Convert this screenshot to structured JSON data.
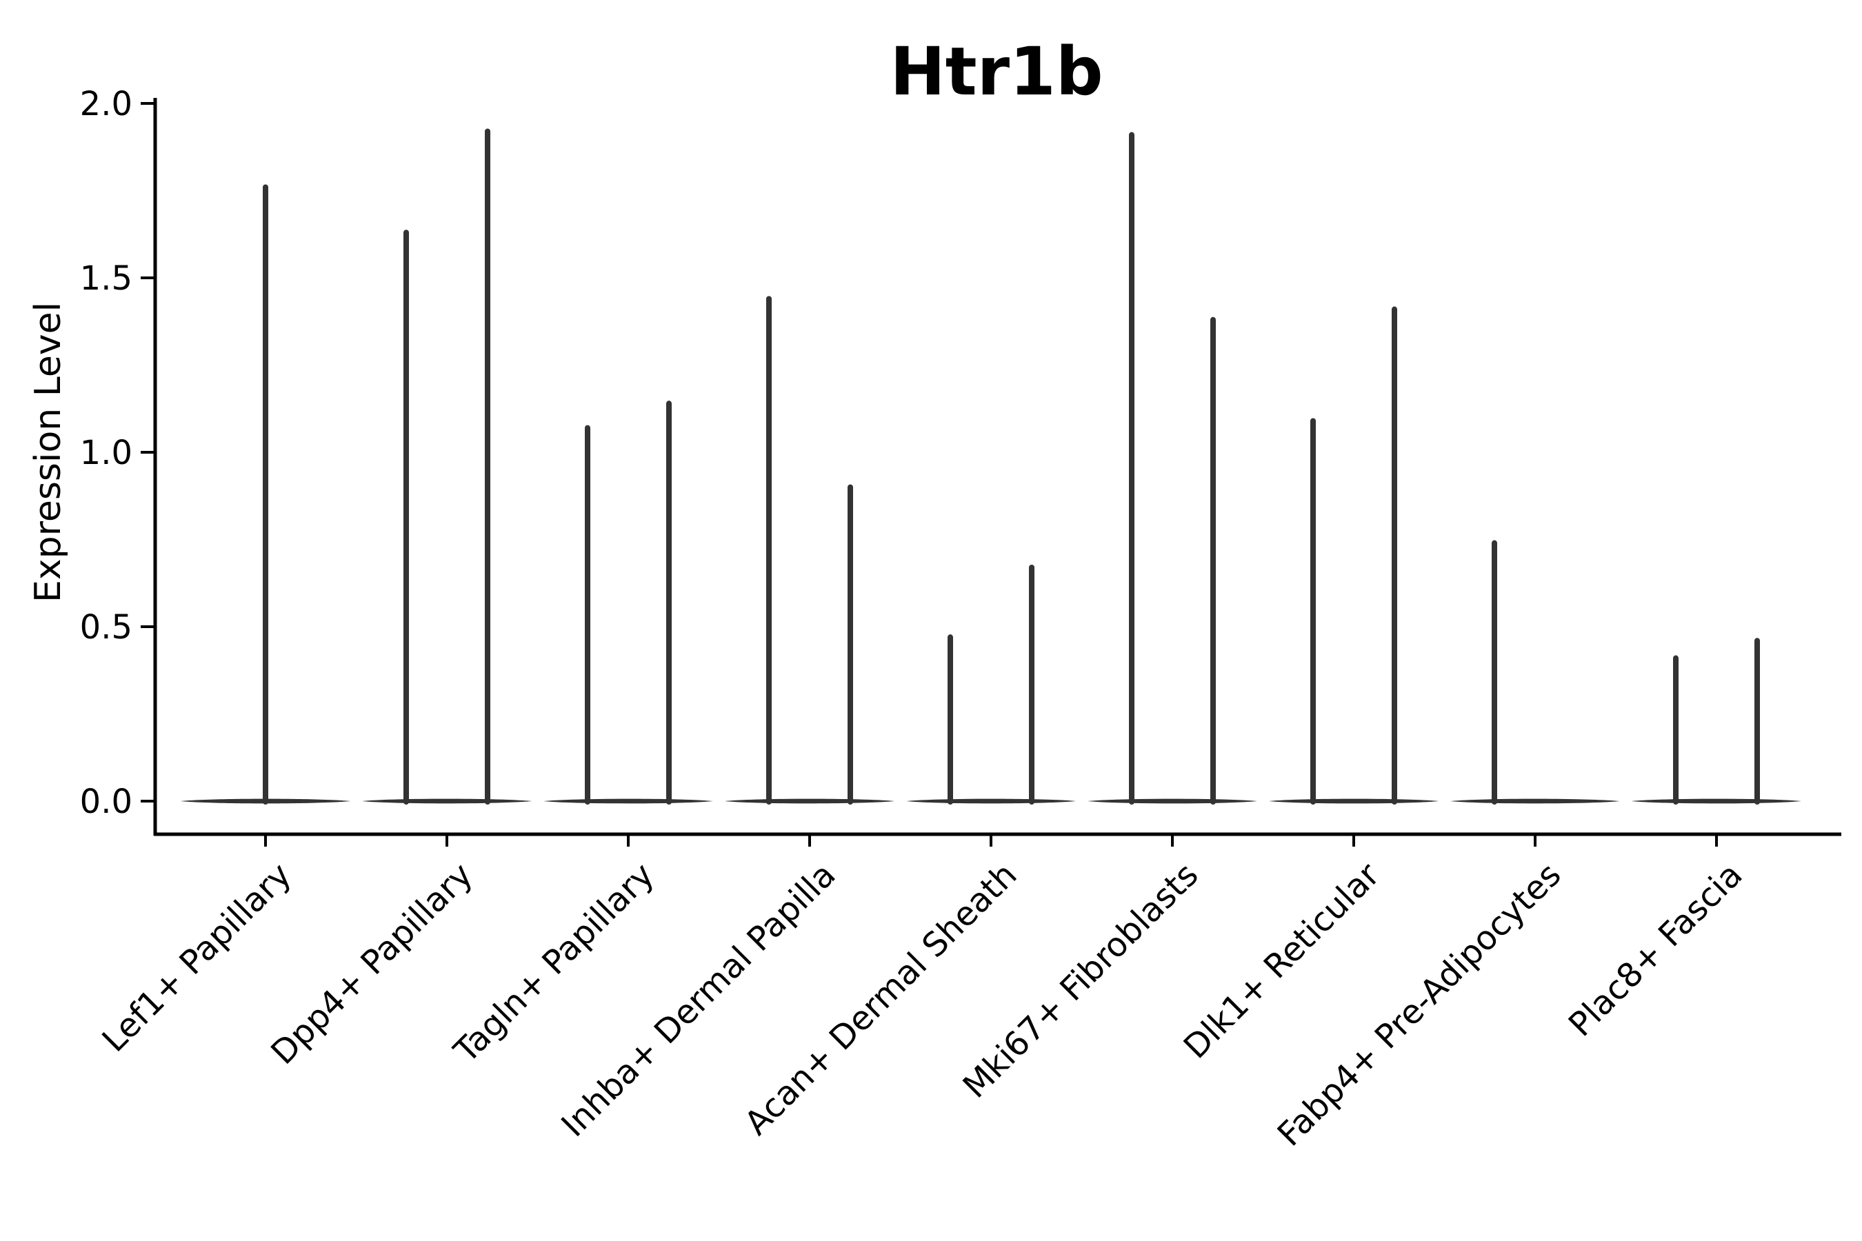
{
  "title": "Htr1b",
  "axes": {
    "y": {
      "label": "Expression Level",
      "tick_labels": [
        "0.0",
        "0.5",
        "1.0",
        "1.5",
        "2.0"
      ]
    },
    "x": {
      "categories": [
        "Lef1+ Papillary",
        "Dpp4+ Papillary",
        "Tagln+ Papillary",
        "Inhba+ Dermal Papilla",
        "Acan+ Dermal Sheath",
        "Mki67+ Fibroblasts",
        "Dlk1+ Reticular",
        "Fabp4+ Pre-Adipocytes",
        "Plac8+ Fascia"
      ]
    }
  },
  "style": {
    "violin_color": "#333333",
    "axis_color": "#000000",
    "text_color": "#000000",
    "background": "#ffffff"
  },
  "chart_data": {
    "type": "violin",
    "title": "Htr1b",
    "xlabel": "",
    "ylabel": "Expression Level",
    "ylim": [
      0,
      2.05
    ],
    "yticks": [
      0.0,
      0.5,
      1.0,
      1.5,
      2.0
    ],
    "grid": false,
    "legend": "none",
    "categories": [
      "Lef1+ Papillary",
      "Dpp4+ Papillary",
      "Tagln+ Papillary",
      "Inhba+ Dermal Papilla",
      "Acan+ Dermal Sheath",
      "Mki67+ Fibroblasts",
      "Dlk1+ Reticular",
      "Fabp4+ Pre-Adipocytes",
      "Plac8+ Fascia"
    ],
    "series": [
      {
        "category": "Lef1+ Papillary",
        "violins": [
          {
            "position": "center",
            "max_expression": 1.76
          }
        ]
      },
      {
        "category": "Dpp4+ Papillary",
        "violins": [
          {
            "position": "left",
            "max_expression": 1.63
          },
          {
            "position": "right",
            "max_expression": 1.92
          }
        ]
      },
      {
        "category": "Tagln+ Papillary",
        "violins": [
          {
            "position": "left",
            "max_expression": 1.07
          },
          {
            "position": "right",
            "max_expression": 1.14
          }
        ]
      },
      {
        "category": "Inhba+ Dermal Papilla",
        "violins": [
          {
            "position": "left",
            "max_expression": 1.44
          },
          {
            "position": "right",
            "max_expression": 0.9
          }
        ]
      },
      {
        "category": "Acan+ Dermal Sheath",
        "violins": [
          {
            "position": "left",
            "max_expression": 0.47
          },
          {
            "position": "right",
            "max_expression": 0.67
          }
        ]
      },
      {
        "category": "Mki67+ Fibroblasts",
        "violins": [
          {
            "position": "left",
            "max_expression": 1.91
          },
          {
            "position": "right",
            "max_expression": 1.38
          }
        ]
      },
      {
        "category": "Dlk1+ Reticular",
        "violins": [
          {
            "position": "left",
            "max_expression": 1.09
          },
          {
            "position": "right",
            "max_expression": 1.41
          }
        ]
      },
      {
        "category": "Fabp4+ Pre-Adipocytes",
        "violins": [
          {
            "position": "left",
            "max_expression": 0.74
          },
          {
            "position": "right",
            "max_expression": 0.0
          }
        ]
      },
      {
        "category": "Plac8+ Fascia",
        "violins": [
          {
            "position": "left",
            "max_expression": 0.41
          },
          {
            "position": "right",
            "max_expression": 0.46
          }
        ]
      }
    ]
  }
}
